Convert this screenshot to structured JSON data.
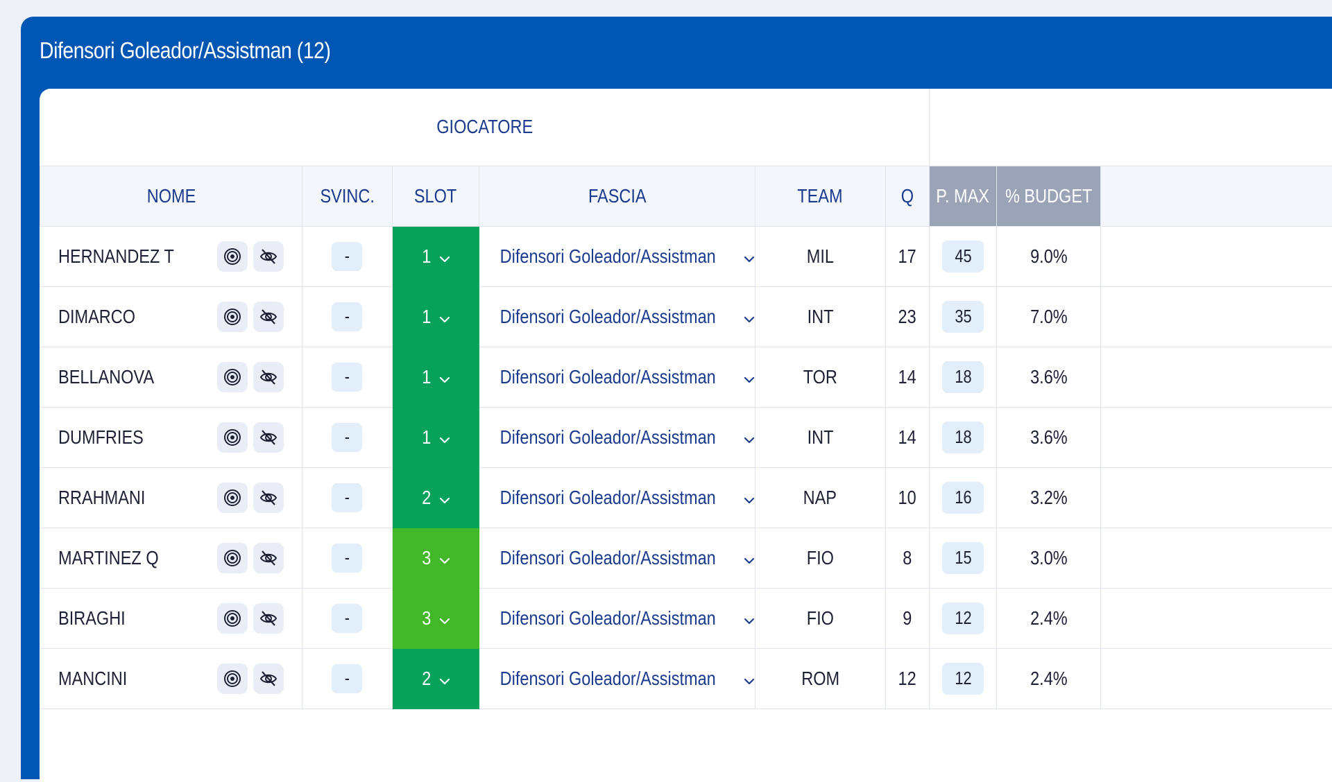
{
  "panel": {
    "title": "Difensori Goleador/Assistman (12)"
  },
  "table": {
    "group_header": "GIOCATORE",
    "columns": {
      "nome": "NOME",
      "svinc": "SVINC.",
      "slot": "SLOT",
      "fascia": "FASCIA",
      "team": "TEAM",
      "q": "Q",
      "pmax": "P. MAX",
      "budget": "% BUDGET"
    },
    "rows": [
      {
        "nome": "HERNANDEZ T",
        "svinc": "-",
        "slot": "1",
        "slot_color": "#06a25c",
        "fascia": "Difensori Goleador/Assistman",
        "team": "MIL",
        "q": "17",
        "pmax": "45",
        "budget": "9.0%"
      },
      {
        "nome": "DIMARCO",
        "svinc": "-",
        "slot": "1",
        "slot_color": "#06a25c",
        "fascia": "Difensori Goleador/Assistman",
        "team": "INT",
        "q": "23",
        "pmax": "35",
        "budget": "7.0%"
      },
      {
        "nome": "BELLANOVA",
        "svinc": "-",
        "slot": "1",
        "slot_color": "#06a25c",
        "fascia": "Difensori Goleador/Assistman",
        "team": "TOR",
        "q": "14",
        "pmax": "18",
        "budget": "3.6%"
      },
      {
        "nome": "DUMFRIES",
        "svinc": "-",
        "slot": "1",
        "slot_color": "#06a25c",
        "fascia": "Difensori Goleador/Assistman",
        "team": "INT",
        "q": "14",
        "pmax": "18",
        "budget": "3.6%"
      },
      {
        "nome": "RRAHMANI",
        "svinc": "-",
        "slot": "2",
        "slot_color": "#06a25c",
        "fascia": "Difensori Goleador/Assistman",
        "team": "NAP",
        "q": "10",
        "pmax": "16",
        "budget": "3.2%"
      },
      {
        "nome": "MARTINEZ Q",
        "svinc": "-",
        "slot": "3",
        "slot_color": "#42b828",
        "fascia": "Difensori Goleador/Assistman",
        "team": "FIO",
        "q": "8",
        "pmax": "15",
        "budget": "3.0%"
      },
      {
        "nome": "BIRAGHI",
        "svinc": "-",
        "slot": "3",
        "slot_color": "#42b828",
        "fascia": "Difensori Goleador/Assistman",
        "team": "FIO",
        "q": "9",
        "pmax": "12",
        "budget": "2.4%"
      },
      {
        "nome": "MANCINI",
        "svinc": "-",
        "slot": "2",
        "slot_color": "#06a25c",
        "fascia": "Difensori Goleador/Assistman",
        "team": "ROM",
        "q": "12",
        "pmax": "12",
        "budget": "2.4%"
      }
    ]
  },
  "icons": {
    "target": "target-icon",
    "hide": "eye-off-icon",
    "dropdown": "chevron-down-icon"
  },
  "colors": {
    "panel_blue": "#0057b3",
    "header_text": "#1a3a8e",
    "slot_green_dark": "#06a25c",
    "slot_green_light": "#42b828",
    "pill_bg": "#e3eefb",
    "dark_header": "#9aa4b6"
  }
}
